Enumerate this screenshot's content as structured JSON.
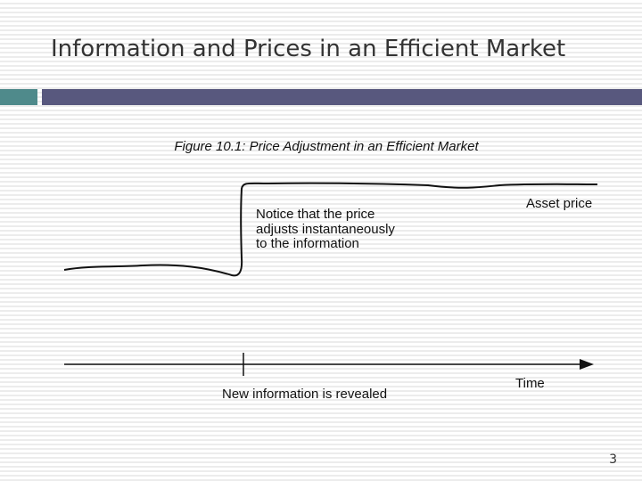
{
  "slide": {
    "title": "Information and Prices in an Efficient Market",
    "page_number": "3"
  },
  "figure": {
    "title": "Figure 10.1: Price Adjustment in an Efficient Market",
    "annotation": [
      "Notice that the price",
      "adjusts instantaneously",
      "to the information"
    ],
    "curve_label": "Asset price",
    "event_label": "New information is revealed",
    "axis_label": "Time"
  }
}
